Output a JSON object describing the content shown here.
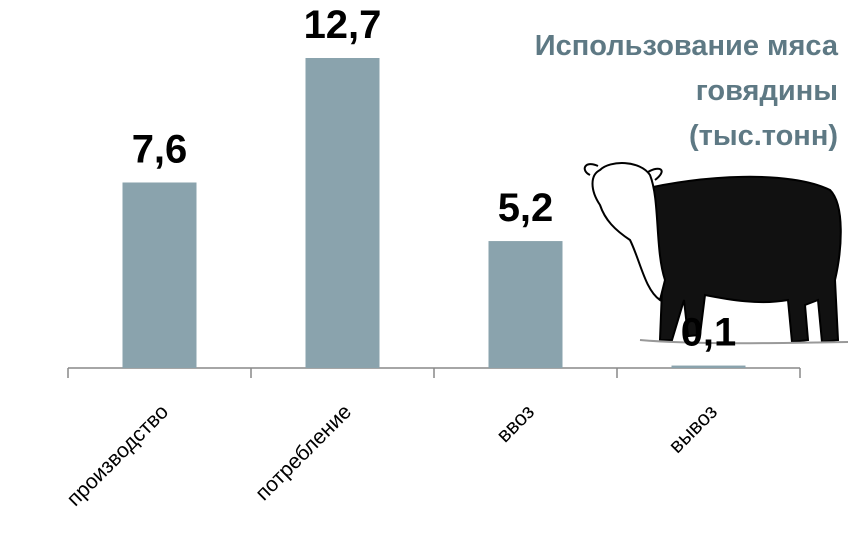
{
  "chart_data": {
    "type": "bar",
    "title": [
      "Использование мяса",
      "говядины",
      "(тыс.тонн)"
    ],
    "categories": [
      "производство",
      "потребление",
      "ввоз",
      "вывоз"
    ],
    "values": [
      7.6,
      12.7,
      5.2,
      0.1
    ],
    "value_labels": [
      "7,6",
      "12,7",
      "5,2",
      "0,1"
    ],
    "color": "#8aa3ad"
  }
}
